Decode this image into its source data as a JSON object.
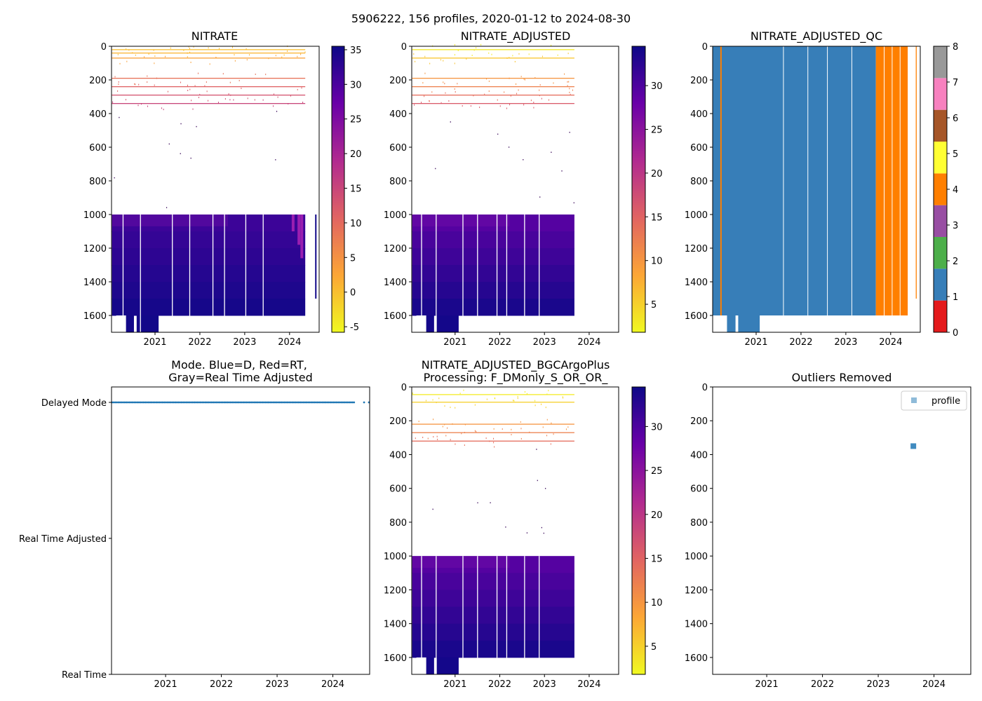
{
  "figure": {
    "suptitle": "5906222, 156 profiles, 2020-01-12 to 2024-08-30"
  },
  "colors": {
    "nitrate_cmap": [
      "#f0f921",
      "#fca636",
      "#e16462",
      "#b12a90",
      "#6a00a8",
      "#0d0887"
    ],
    "qc_colors": [
      "#e41a1c",
      "#377eb8",
      "#4daf4a",
      "#984ea3",
      "#ff7f00",
      "#ffff33",
      "#a65628",
      "#f781bf",
      "#999999"
    ],
    "mode_delayed": "#1f77b4",
    "outlier_marker": "#1f77b4"
  },
  "chart_data": [
    {
      "id": "nitrate",
      "type": "heatmap",
      "title": "NITRATE",
      "xlabel": "",
      "ylabel": "",
      "xlim": [
        2020.03,
        2024.66
      ],
      "ylim": [
        1700,
        0
      ],
      "xticks": [
        "2021",
        "2022",
        "2023",
        "2024"
      ],
      "yticks": [
        "0",
        "200",
        "400",
        "600",
        "800",
        "1000",
        "1200",
        "1400",
        "1600"
      ],
      "colorbar": {
        "range": [
          -5.8,
          35.5
        ],
        "ticks": [
          "-5",
          "0",
          "5",
          "10",
          "15",
          "20",
          "25",
          "30",
          "35"
        ]
      },
      "deep_block": {
        "x": [
          2020.04,
          2024.35
        ],
        "depth": [
          1000,
          1600
        ],
        "values_range": [
          31,
          35
        ]
      },
      "deep_extension": [
        [
          2020.34,
          2020.53
        ],
        [
          2020.59,
          2021.08
        ]
      ],
      "isolated_profile": {
        "x": 2024.57,
        "depth": [
          1000,
          1500
        ]
      },
      "shallow_layers": [
        {
          "depth": 20,
          "value": 0
        },
        {
          "depth": 40,
          "value": 1
        },
        {
          "depth": 70,
          "value": 3
        },
        {
          "depth": 190,
          "value": 9
        },
        {
          "depth": 240,
          "value": 11
        },
        {
          "depth": 290,
          "value": 13
        },
        {
          "depth": 340,
          "value": 15
        }
      ]
    },
    {
      "id": "nitrate_adjusted",
      "type": "heatmap",
      "title": "NITRATE_ADJUSTED",
      "xlabel": "",
      "ylabel": "",
      "xlim": [
        2020.03,
        2024.66
      ],
      "ylim": [
        1700,
        0
      ],
      "xticks": [
        "2021",
        "2022",
        "2023",
        "2024"
      ],
      "yticks": [
        "0",
        "200",
        "400",
        "600",
        "800",
        "1000",
        "1200",
        "1400",
        "1600"
      ],
      "colorbar": {
        "range": [
          1.8,
          34.5
        ],
        "ticks": [
          "5",
          "10",
          "15",
          "20",
          "25",
          "30"
        ]
      },
      "deep_block": {
        "x": [
          2020.04,
          2023.67
        ],
        "depth": [
          1000,
          1600
        ],
        "values_range": [
          29,
          34
        ]
      },
      "deep_extension": [
        [
          2020.34,
          2020.53
        ],
        [
          2020.59,
          2021.08
        ]
      ],
      "shallow_layers": [
        {
          "depth": 20,
          "value": 3
        },
        {
          "depth": 70,
          "value": 6
        },
        {
          "depth": 190,
          "value": 10
        },
        {
          "depth": 240,
          "value": 12
        },
        {
          "depth": 290,
          "value": 14
        },
        {
          "depth": 340,
          "value": 16
        }
      ]
    },
    {
      "id": "nitrate_adjusted_qc",
      "type": "heatmap",
      "title": "NITRATE_ADJUSTED_QC",
      "xlabel": "",
      "ylabel": "",
      "xlim": [
        2020.03,
        2024.66
      ],
      "ylim": [
        1700,
        0
      ],
      "xticks": [
        "2021",
        "2022",
        "2023",
        "2024"
      ],
      "yticks": [
        "0",
        "200",
        "400",
        "600",
        "800",
        "1000",
        "1200",
        "1400",
        "1600"
      ],
      "colorbar": {
        "range": [
          0,
          8
        ],
        "ticks": [
          "0",
          "1",
          "2",
          "3",
          "4",
          "5",
          "6",
          "7",
          "8"
        ]
      },
      "regions": [
        {
          "flag": 1,
          "x": [
            2020.03,
            2023.67
          ],
          "depth": [
            0,
            1600
          ]
        },
        {
          "flag": 4,
          "x": [
            2023.67,
            2024.38
          ],
          "depth": [
            0,
            1600
          ]
        },
        {
          "flag": 4,
          "x": [
            2024.56,
            2024.58
          ],
          "depth": [
            0,
            1500
          ]
        }
      ],
      "deep_extension": [
        [
          2020.35,
          2020.54
        ],
        [
          2020.6,
          2021.08
        ]
      ]
    },
    {
      "id": "mode",
      "type": "scatter",
      "title": "Mode. Blue=D, Red=RT,",
      "title_line2": "Gray=Real Time Adjusted",
      "xlabel": "",
      "ylabel": "",
      "xlim": [
        2020.03,
        2024.66
      ],
      "ylim": [
        0,
        2
      ],
      "xticks": [
        "2021",
        "2022",
        "2023",
        "2024"
      ],
      "yticks": [
        "Real Time",
        "Real Time Adjusted",
        "Delayed Mode"
      ],
      "series": [
        {
          "name": "Delayed Mode",
          "level": 2,
          "x_range": [
            2020.04,
            2024.38
          ],
          "count": 154,
          "extra_x": [
            2024.56,
            2024.66
          ]
        }
      ]
    },
    {
      "id": "nitrate_bgcargoplus",
      "type": "heatmap",
      "title": "NITRATE_ADJUSTED_BGCArgoPlus",
      "title_line2": "Processing: F_DMonly_S_OR_OR_",
      "xlabel": "",
      "ylabel": "",
      "xlim": [
        2020.03,
        2024.66
      ],
      "ylim": [
        1700,
        0
      ],
      "xticks": [
        "2021",
        "2022",
        "2023",
        "2024"
      ],
      "yticks": [
        "0",
        "200",
        "400",
        "600",
        "800",
        "1000",
        "1200",
        "1400",
        "1600"
      ],
      "colorbar": {
        "range": [
          1.8,
          34.5
        ],
        "ticks": [
          "5",
          "10",
          "15",
          "20",
          "25",
          "30"
        ]
      },
      "deep_block": {
        "x": [
          2020.04,
          2023.67
        ],
        "depth": [
          1000,
          1600
        ],
        "values_range": [
          29,
          34
        ]
      },
      "deep_extension": [
        [
          2020.34,
          2020.53
        ],
        [
          2020.59,
          2021.08
        ]
      ],
      "shallow_layers": [
        {
          "depth": 45,
          "value": 3
        },
        {
          "depth": 90,
          "value": 5
        },
        {
          "depth": 220,
          "value": 10
        },
        {
          "depth": 270,
          "value": 12
        },
        {
          "depth": 320,
          "value": 14
        }
      ]
    },
    {
      "id": "outliers",
      "type": "scatter",
      "title": "Outliers Removed",
      "xlabel": "",
      "ylabel": "",
      "xlim": [
        2020.03,
        2024.66
      ],
      "ylim": [
        1700,
        0
      ],
      "xticks": [
        "2021",
        "2022",
        "2023",
        "2024"
      ],
      "yticks": [
        "0",
        "200",
        "400",
        "600",
        "800",
        "1000",
        "1200",
        "1400",
        "1600"
      ],
      "legend": {
        "label": "profile",
        "position": "top-right"
      },
      "points": [
        {
          "x": 2023.63,
          "y": 350
        }
      ]
    }
  ]
}
